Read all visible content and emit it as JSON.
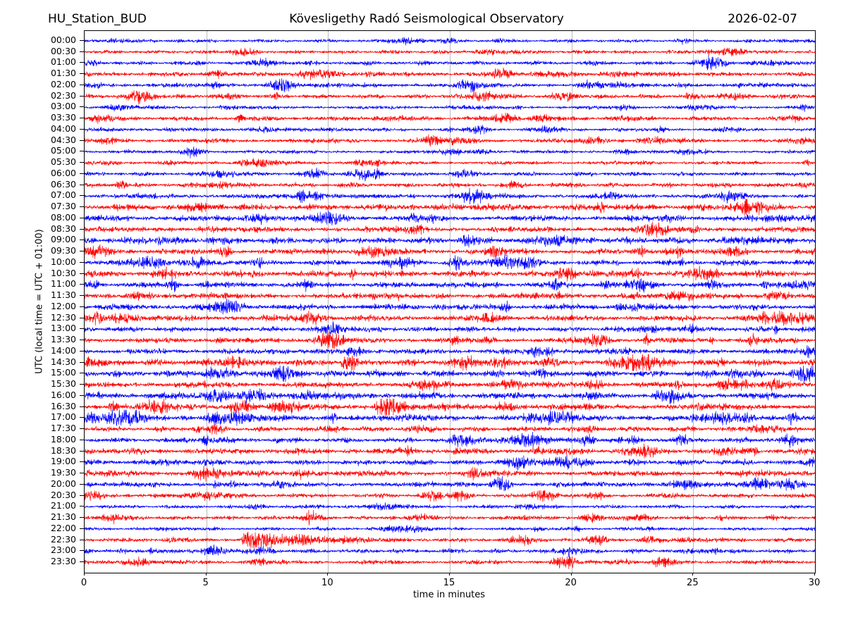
{
  "chart_data": {
    "type": "line",
    "subtype": "helicorder-seismogram-drum-record",
    "station": "HU_Station_BUD",
    "title": "Kövesligethy Radó Seismological Observatory",
    "date": "2026-02-07",
    "xlabel": "time in minutes",
    "ylabel": "UTC (local time = UTC + 01:00)",
    "x_range": [
      0,
      30
    ],
    "x_ticks": [
      0,
      5,
      10,
      15,
      20,
      25,
      30
    ],
    "minutes_per_line": 30,
    "grid": "vertical dotted gridlines every 5 minutes",
    "legend": "none",
    "trace_color_cycle": [
      "#0000ff",
      "#ff0000"
    ],
    "grid_color": "#777777",
    "frame_color": "#000000",
    "row_labels": [
      "00:00",
      "00:30",
      "01:00",
      "01:30",
      "02:00",
      "02:30",
      "03:00",
      "03:30",
      "04:00",
      "04:30",
      "05:00",
      "05:30",
      "06:00",
      "06:30",
      "07:00",
      "07:30",
      "08:00",
      "08:30",
      "09:00",
      "09:30",
      "10:00",
      "10:30",
      "11:00",
      "11:30",
      "12:00",
      "12:30",
      "13:00",
      "13:30",
      "14:00",
      "14:30",
      "15:00",
      "15:30",
      "16:00",
      "16:30",
      "17:00",
      "17:30",
      "18:00",
      "18:30",
      "19:00",
      "19:30",
      "20:00",
      "20:30",
      "21:00",
      "21:30",
      "22:00",
      "22:30",
      "23:00",
      "23:30"
    ],
    "noise_character": "continuous ambient seismic noise on every half-hour trace; amplitudes visibly higher on traces from 07:30 through 19:00 UTC",
    "events": [
      {
        "row": "00:30",
        "minute": 6.5,
        "strength": 2.4
      },
      {
        "row": "01:30",
        "minute": 17.2,
        "strength": 2.0
      },
      {
        "row": "02:00",
        "minute": 8.0,
        "strength": 2.0
      },
      {
        "row": "02:00",
        "minute": 20.8,
        "strength": 2.0
      },
      {
        "row": "02:30",
        "minute": 16.2,
        "strength": 2.0
      },
      {
        "row": "03:30",
        "minute": 17.3,
        "strength": 2.2
      },
      {
        "row": "03:30",
        "minute": 18.7,
        "strength": 1.8
      },
      {
        "row": "04:00",
        "minute": 16.2,
        "strength": 1.9
      },
      {
        "row": "04:00",
        "minute": 19.0,
        "strength": 1.8
      },
      {
        "row": "04:30",
        "minute": 21.0,
        "strength": 1.7
      },
      {
        "row": "04:30",
        "minute": 23.3,
        "strength": 1.7
      },
      {
        "row": "05:00",
        "minute": 22.2,
        "strength": 1.6
      },
      {
        "row": "10:30",
        "minute": 25.6,
        "strength": 1.8
      },
      {
        "row": "15:30",
        "minute": 26.3,
        "strength": 2.2
      },
      {
        "row": "16:00",
        "minute": 24.0,
        "strength": 2.0
      },
      {
        "row": "16:30",
        "minute": 3.0,
        "strength": 2.2
      },
      {
        "row": "16:30",
        "minute": 6.5,
        "strength": 2.2
      },
      {
        "row": "16:30",
        "minute": 12.5,
        "strength": 2.0
      },
      {
        "row": "18:00",
        "minute": 15.5,
        "strength": 2.2
      },
      {
        "row": "20:00",
        "minute": 29.0,
        "strength": 2.2
      },
      {
        "row": "20:30",
        "minute": 0.3,
        "strength": 2.0
      },
      {
        "row": "21:30",
        "minute": 20.8,
        "strength": 1.8
      },
      {
        "row": "22:30",
        "minute": 6.4,
        "strength": 6.5,
        "type": "largest event: sharp onset with decaying coda lasting several minutes"
      }
    ]
  }
}
